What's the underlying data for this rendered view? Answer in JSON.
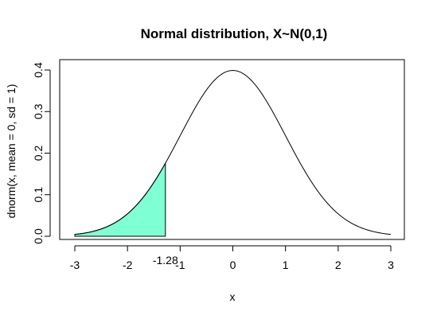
{
  "chart_data": {
    "type": "line",
    "title": "Normal distribution, X~N(0,1)",
    "xlabel": "x",
    "ylabel": "dnorm(x, mean = 0, sd = 1)",
    "xlim": [
      -3,
      3
    ],
    "ylim": [
      0,
      0.4
    ],
    "x_ticks": [
      "-3",
      "-2",
      "-1",
      "0",
      "1",
      "2",
      "3"
    ],
    "y_ticks": [
      "0.0",
      "0.1",
      "0.2",
      "0.3",
      "0.4"
    ],
    "series": [
      {
        "function": "dnorm(x, mean = 0, sd = 1)",
        "x": [
          -3.0,
          -2.5,
          -2.0,
          -1.5,
          -1.28,
          -1.0,
          -0.5,
          0.0,
          0.5,
          1.0,
          1.5,
          2.0,
          2.5,
          3.0
        ],
        "y": [
          0.0044,
          0.0175,
          0.054,
          0.1295,
          0.1758,
          0.242,
          0.3521,
          0.3989,
          0.3521,
          0.242,
          0.1295,
          0.054,
          0.0175,
          0.0044
        ]
      }
    ],
    "shaded_region": {
      "from": -3,
      "to": -1.28,
      "color": "#7fffd4"
    },
    "annotations": [
      {
        "text": "-1.28",
        "x": -1.28
      }
    ],
    "grid": false,
    "legend": "none"
  }
}
